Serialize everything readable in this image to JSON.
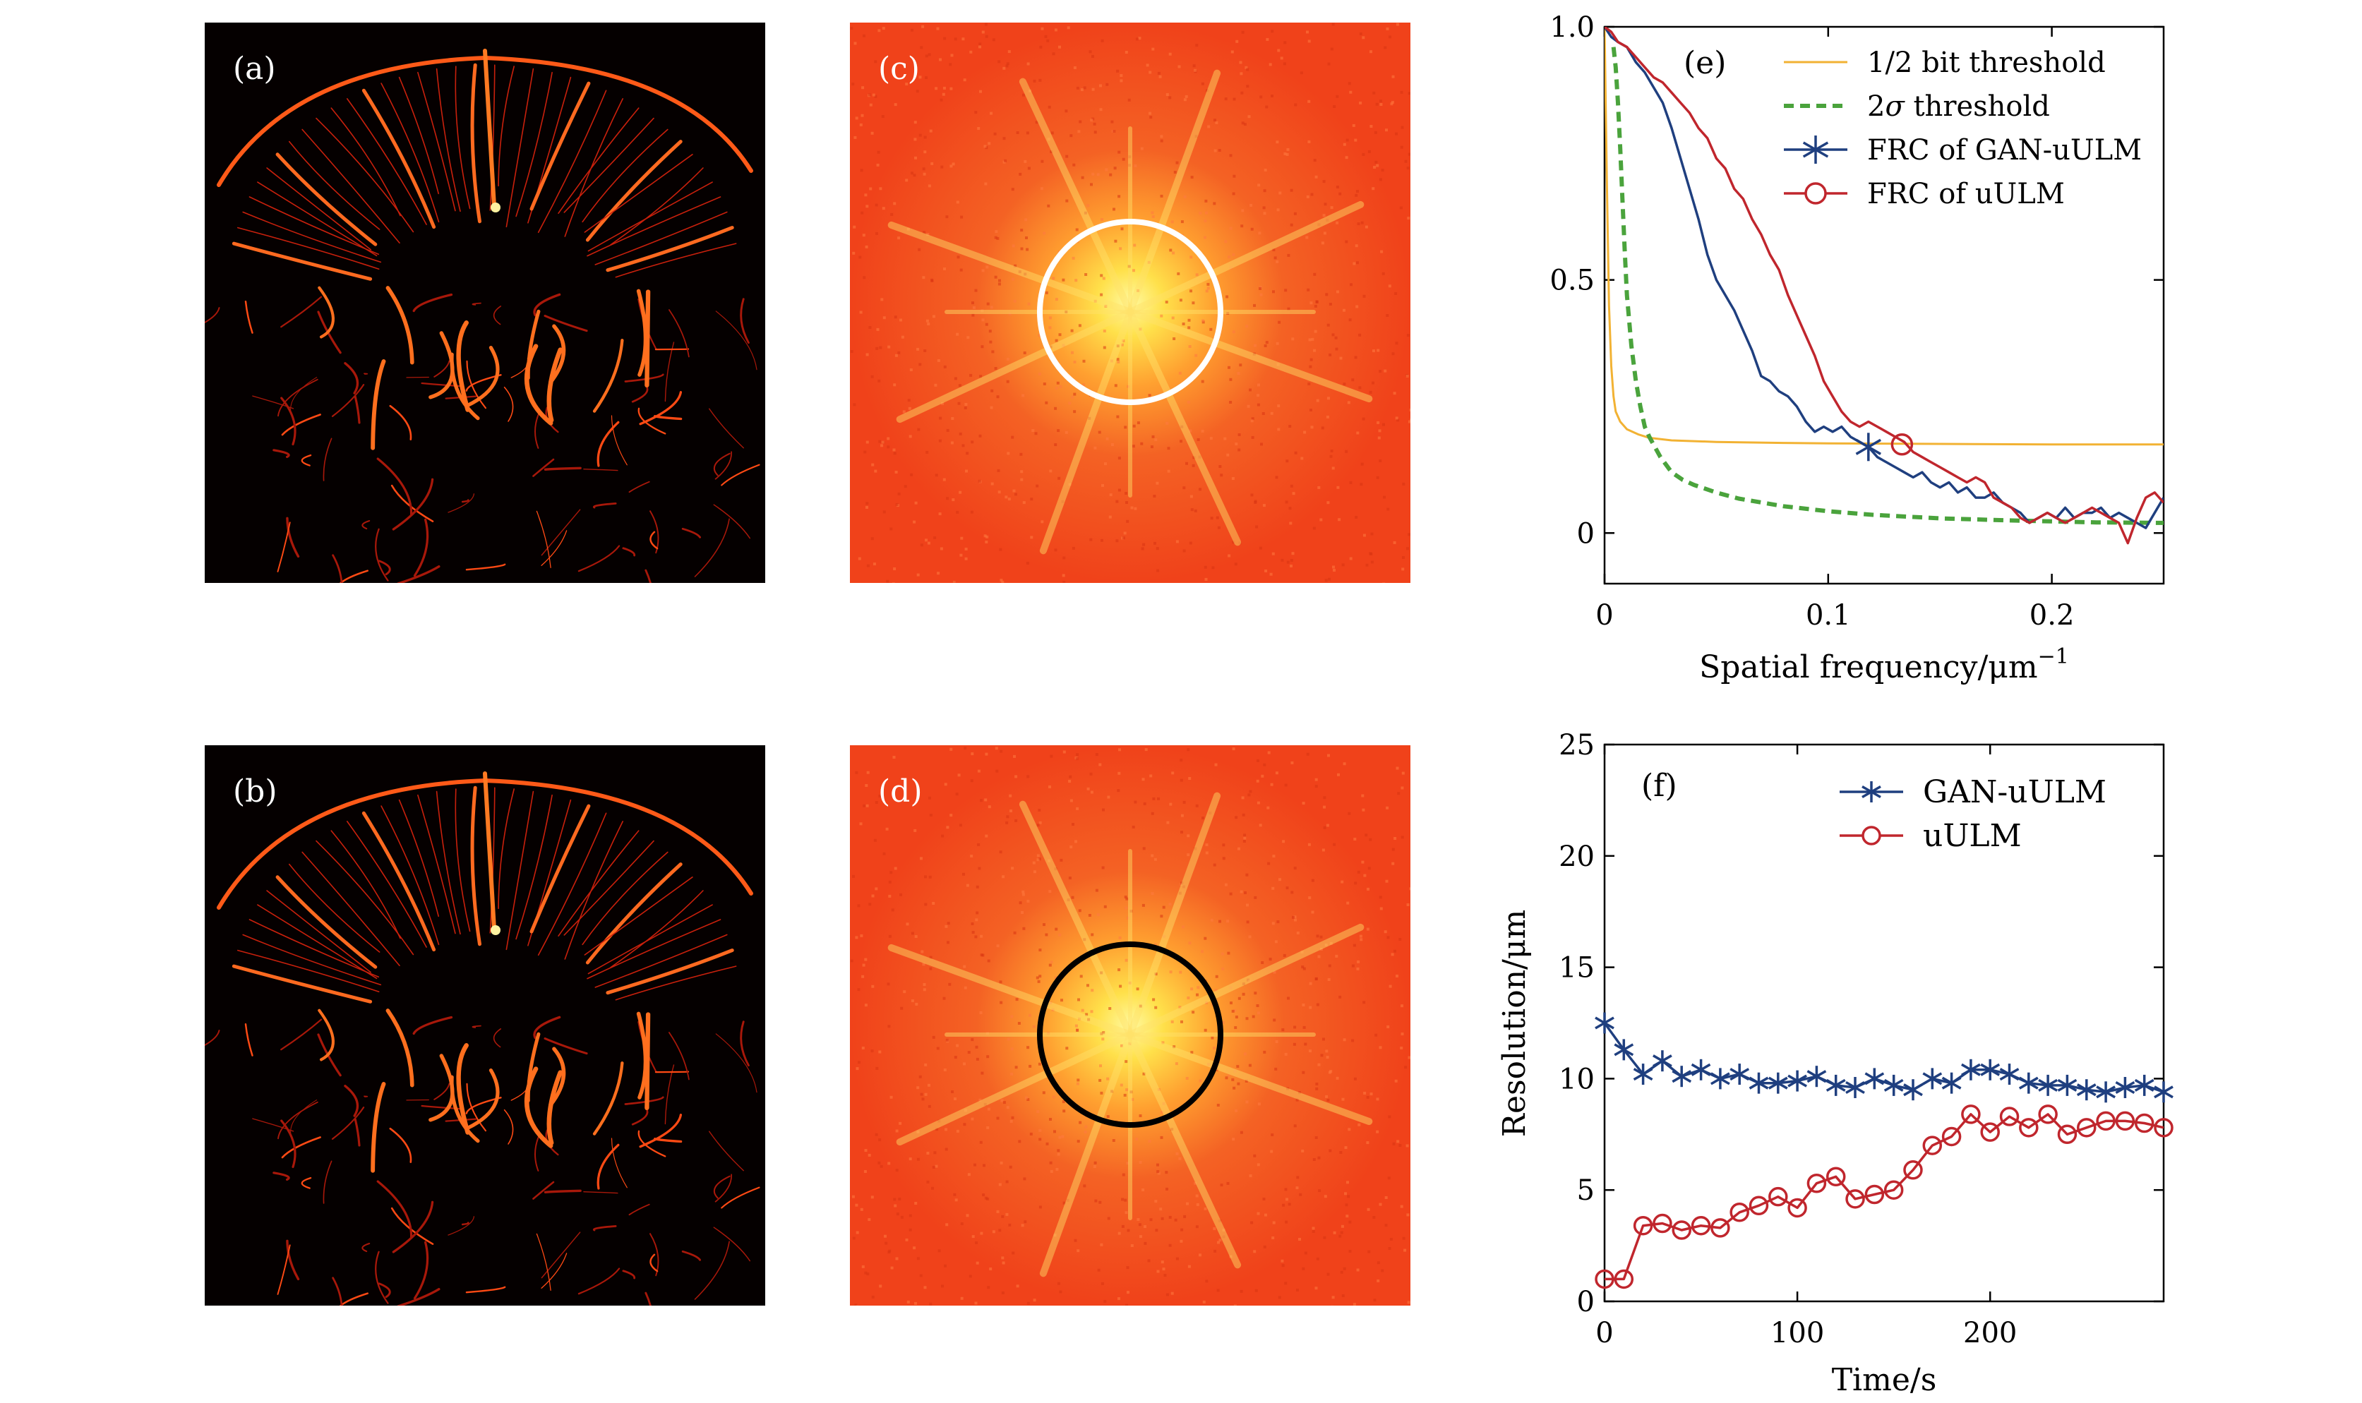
{
  "colors": {
    "vessel_bg": "#050000",
    "vessel_line": "#ff3a12",
    "vessel_core": "#ffd060",
    "spectrum_bg": "#f0421a",
    "spectrum_glow": "#fff066",
    "ring_c": "#ffffff",
    "ring_d": "#000000",
    "series_gan": "#1f3f7f",
    "series_uulm": "#c0262d",
    "series_halfbit": "#f2b233",
    "series_2sigma": "#4aa33c"
  },
  "panel_labels": {
    "a": "(a)",
    "b": "(b)",
    "c": "(c)",
    "d": "(d)"
  },
  "chart_data": [
    {
      "type": "line",
      "panel_label": "(e)",
      "xlabel": "Spatial frequency/μm",
      "xlabel_exp": "−1",
      "ylabel": "",
      "xlim": [
        0,
        0.25
      ],
      "ylim": [
        -0.1,
        1.0
      ],
      "xticks": [
        0,
        0.1,
        0.2
      ],
      "xtick_labels": [
        "0",
        "0.1",
        "0.2"
      ],
      "yticks": [
        0,
        0.5,
        1.0
      ],
      "ytick_labels": [
        "0",
        "0.5",
        "1.0"
      ],
      "legend": "top-right",
      "series": [
        {
          "name": "1/2 bit threshold",
          "style": "solid-thin",
          "color": "#f2b233",
          "x": [
            0,
            0.001,
            0.002,
            0.003,
            0.004,
            0.005,
            0.007,
            0.01,
            0.015,
            0.02,
            0.03,
            0.05,
            0.08,
            0.1,
            0.15,
            0.2,
            0.25
          ],
          "y": [
            1.0,
            0.7,
            0.45,
            0.33,
            0.27,
            0.24,
            0.22,
            0.205,
            0.195,
            0.188,
            0.183,
            0.18,
            0.178,
            0.177,
            0.176,
            0.175,
            0.175
          ]
        },
        {
          "name": "2σ threshold",
          "style": "dashed",
          "color": "#4aa33c",
          "x": [
            0.004,
            0.005,
            0.006,
            0.007,
            0.008,
            0.009,
            0.01,
            0.012,
            0.014,
            0.016,
            0.018,
            0.02,
            0.025,
            0.03,
            0.035,
            0.04,
            0.05,
            0.06,
            0.08,
            0.1,
            0.12,
            0.15,
            0.18,
            0.2,
            0.22,
            0.25
          ],
          "y": [
            0.96,
            0.92,
            0.85,
            0.76,
            0.66,
            0.56,
            0.47,
            0.37,
            0.3,
            0.25,
            0.21,
            0.19,
            0.15,
            0.12,
            0.105,
            0.095,
            0.08,
            0.068,
            0.053,
            0.043,
            0.036,
            0.029,
            0.025,
            0.023,
            0.021,
            0.02
          ]
        },
        {
          "name": "FRC of GAN-uULM",
          "style": "solid",
          "color": "#1f3f7f",
          "x": [
            0,
            0.003,
            0.006,
            0.01,
            0.014,
            0.018,
            0.022,
            0.026,
            0.03,
            0.034,
            0.038,
            0.042,
            0.046,
            0.05,
            0.054,
            0.058,
            0.062,
            0.066,
            0.07,
            0.074,
            0.078,
            0.082,
            0.086,
            0.09,
            0.094,
            0.098,
            0.102,
            0.106,
            0.11,
            0.114,
            0.118,
            0.122,
            0.126,
            0.13,
            0.134,
            0.138,
            0.142,
            0.146,
            0.15,
            0.154,
            0.158,
            0.162,
            0.166,
            0.17,
            0.174,
            0.178,
            0.182,
            0.186,
            0.19,
            0.194,
            0.198,
            0.202,
            0.206,
            0.21,
            0.214,
            0.218,
            0.222,
            0.226,
            0.23,
            0.234,
            0.238,
            0.242,
            0.246,
            0.25
          ],
          "y": [
            1.0,
            0.98,
            0.97,
            0.96,
            0.93,
            0.91,
            0.88,
            0.85,
            0.8,
            0.74,
            0.68,
            0.62,
            0.55,
            0.5,
            0.47,
            0.44,
            0.4,
            0.36,
            0.31,
            0.3,
            0.28,
            0.27,
            0.25,
            0.22,
            0.2,
            0.21,
            0.2,
            0.21,
            0.19,
            0.18,
            0.17,
            0.15,
            0.14,
            0.13,
            0.12,
            0.11,
            0.12,
            0.1,
            0.09,
            0.1,
            0.08,
            0.09,
            0.07,
            0.07,
            0.08,
            0.06,
            0.05,
            0.04,
            0.02,
            0.03,
            0.04,
            0.03,
            0.05,
            0.03,
            0.04,
            0.04,
            0.05,
            0.03,
            0.04,
            0.03,
            0.02,
            0.01,
            0.04,
            0.07
          ]
        },
        {
          "name": "FRC of uULM",
          "style": "solid",
          "color": "#c0262d",
          "x": [
            0,
            0.003,
            0.006,
            0.01,
            0.014,
            0.018,
            0.022,
            0.026,
            0.03,
            0.034,
            0.038,
            0.042,
            0.046,
            0.05,
            0.054,
            0.058,
            0.062,
            0.066,
            0.07,
            0.074,
            0.078,
            0.082,
            0.086,
            0.09,
            0.094,
            0.098,
            0.102,
            0.106,
            0.11,
            0.114,
            0.118,
            0.122,
            0.126,
            0.13,
            0.134,
            0.138,
            0.142,
            0.146,
            0.15,
            0.154,
            0.158,
            0.162,
            0.166,
            0.17,
            0.174,
            0.178,
            0.182,
            0.186,
            0.19,
            0.194,
            0.198,
            0.202,
            0.206,
            0.21,
            0.214,
            0.218,
            0.222,
            0.226,
            0.23,
            0.234,
            0.238,
            0.242,
            0.246,
            0.25
          ],
          "y": [
            1.0,
            0.99,
            0.97,
            0.96,
            0.94,
            0.92,
            0.9,
            0.89,
            0.87,
            0.85,
            0.83,
            0.8,
            0.78,
            0.74,
            0.72,
            0.68,
            0.66,
            0.62,
            0.59,
            0.55,
            0.52,
            0.47,
            0.43,
            0.39,
            0.35,
            0.3,
            0.27,
            0.24,
            0.22,
            0.21,
            0.22,
            0.21,
            0.2,
            0.19,
            0.18,
            0.16,
            0.15,
            0.14,
            0.13,
            0.12,
            0.11,
            0.1,
            0.11,
            0.1,
            0.07,
            0.06,
            0.05,
            0.03,
            0.02,
            0.03,
            0.04,
            0.03,
            0.02,
            0.03,
            0.04,
            0.05,
            0.04,
            0.03,
            0.02,
            -0.02,
            0.03,
            0.07,
            0.08,
            0.06
          ]
        }
      ],
      "markers": [
        {
          "series": "FRC of GAN-uULM",
          "symbol": "asterisk",
          "x": 0.118,
          "y": 0.17
        },
        {
          "series": "FRC of uULM",
          "symbol": "circle",
          "x": 0.133,
          "y": 0.175
        }
      ]
    },
    {
      "type": "line",
      "panel_label": "(f)",
      "xlabel": "Time/s",
      "ylabel": "Resolution/μm",
      "xlim": [
        0,
        290
      ],
      "ylim": [
        0,
        25
      ],
      "xticks": [
        0,
        100,
        200
      ],
      "xtick_labels": [
        "0",
        "100",
        "200"
      ],
      "yticks": [
        0,
        5,
        10,
        15,
        20,
        25
      ],
      "ytick_labels": [
        "0",
        "5",
        "10",
        "15",
        "20",
        "25"
      ],
      "legend": "top-right",
      "series": [
        {
          "name": "GAN-uULM",
          "marker": "asterisk",
          "color": "#1f3f7f",
          "x": [
            0,
            10,
            20,
            30,
            40,
            50,
            60,
            70,
            80,
            90,
            100,
            110,
            120,
            130,
            140,
            150,
            160,
            170,
            180,
            190,
            200,
            210,
            220,
            230,
            240,
            250,
            260,
            270,
            280,
            290
          ],
          "y": [
            12.5,
            11.3,
            10.2,
            10.8,
            10.1,
            10.4,
            10.0,
            10.2,
            9.8,
            9.8,
            9.9,
            10.1,
            9.7,
            9.6,
            10.0,
            9.7,
            9.5,
            10.0,
            9.8,
            10.4,
            10.4,
            10.2,
            9.8,
            9.7,
            9.7,
            9.5,
            9.4,
            9.6,
            9.7,
            9.4
          ]
        },
        {
          "name": "uULM",
          "marker": "circle",
          "color": "#c0262d",
          "x": [
            0,
            10,
            20,
            30,
            40,
            50,
            60,
            70,
            80,
            90,
            100,
            110,
            120,
            130,
            140,
            150,
            160,
            170,
            180,
            190,
            200,
            210,
            220,
            230,
            240,
            250,
            260,
            270,
            280,
            290
          ],
          "y": [
            1.0,
            1.0,
            3.4,
            3.5,
            3.2,
            3.4,
            3.3,
            4.0,
            4.3,
            4.7,
            4.2,
            5.3,
            5.6,
            4.6,
            4.8,
            5.0,
            5.9,
            7.0,
            7.4,
            8.4,
            7.6,
            8.3,
            7.8,
            8.4,
            7.5,
            7.8,
            8.1,
            8.1,
            8.0,
            7.8
          ]
        }
      ]
    }
  ]
}
